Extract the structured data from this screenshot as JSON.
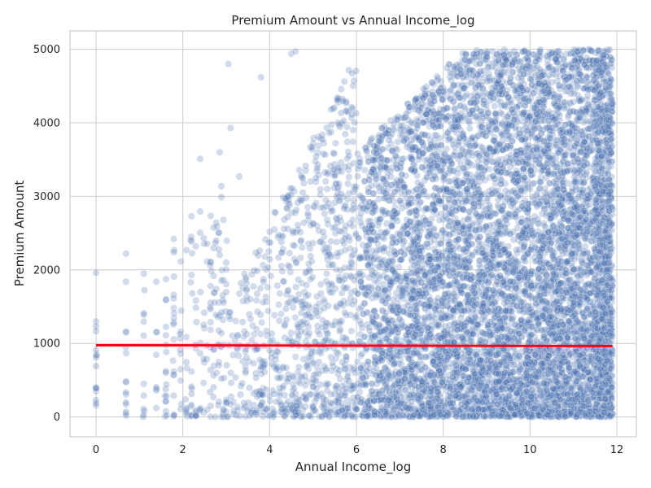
{
  "chart_data": {
    "type": "scatter",
    "title": "Premium Amount vs Annual Income_log",
    "xlabel": "Annual Income_log",
    "ylabel": "Premium Amount",
    "xlim": [
      -0.6,
      12.45
    ],
    "ylim": [
      -270,
      5250
    ],
    "xticks": [
      0,
      2,
      4,
      6,
      8,
      10,
      12
    ],
    "yticks": [
      0,
      1000,
      2000,
      3000,
      4000,
      5000
    ],
    "grid": true,
    "colors": {
      "points": "#4c72b0",
      "trend": "#ff0000",
      "grid": "#cccccc"
    },
    "scatter_series": {
      "x_range": [
        0,
        11.9
      ],
      "y_range": [
        0,
        5000
      ],
      "approx_count": 12000,
      "density_note": "sparse below x=4, dense cloud from x=6 to x=11.9 covering y=0–5000",
      "sample_points": [
        {
          "x": 0,
          "y": 1960
        },
        {
          "x": 0,
          "y": 1300
        },
        {
          "x": 0,
          "y": 1230
        },
        {
          "x": 0,
          "y": 400
        },
        {
          "x": 0,
          "y": 350
        },
        {
          "x": 0.69,
          "y": 2220
        },
        {
          "x": 0.69,
          "y": 1840
        },
        {
          "x": 0.69,
          "y": 1150
        },
        {
          "x": 0.69,
          "y": 480
        },
        {
          "x": 0.69,
          "y": 170
        },
        {
          "x": 0.69,
          "y": 70
        },
        {
          "x": 1.1,
          "y": 1410
        },
        {
          "x": 1.1,
          "y": 1390
        },
        {
          "x": 1.1,
          "y": 450
        },
        {
          "x": 1.1,
          "y": 290
        },
        {
          "x": 1.39,
          "y": 1840
        },
        {
          "x": 1.39,
          "y": 1150
        },
        {
          "x": 1.39,
          "y": 380
        },
        {
          "x": 1.39,
          "y": 120
        },
        {
          "x": 1.61,
          "y": 1600
        },
        {
          "x": 1.61,
          "y": 620
        },
        {
          "x": 1.79,
          "y": 2420
        },
        {
          "x": 1.79,
          "y": 1660
        },
        {
          "x": 1.79,
          "y": 1480
        },
        {
          "x": 1.79,
          "y": 290
        },
        {
          "x": 2.4,
          "y": 3510
        },
        {
          "x": 2.2,
          "y": 2730
        },
        {
          "x": 3.05,
          "y": 4800
        },
        {
          "x": 3.1,
          "y": 3930
        },
        {
          "x": 2.85,
          "y": 3600
        },
        {
          "x": 3.3,
          "y": 3270
        },
        {
          "x": 4.5,
          "y": 4940
        },
        {
          "x": 4.6,
          "y": 4970
        },
        {
          "x": 3.8,
          "y": 4620
        }
      ]
    },
    "trend_line": {
      "x": [
        0,
        11.9
      ],
      "y": [
        975,
        965
      ]
    }
  }
}
